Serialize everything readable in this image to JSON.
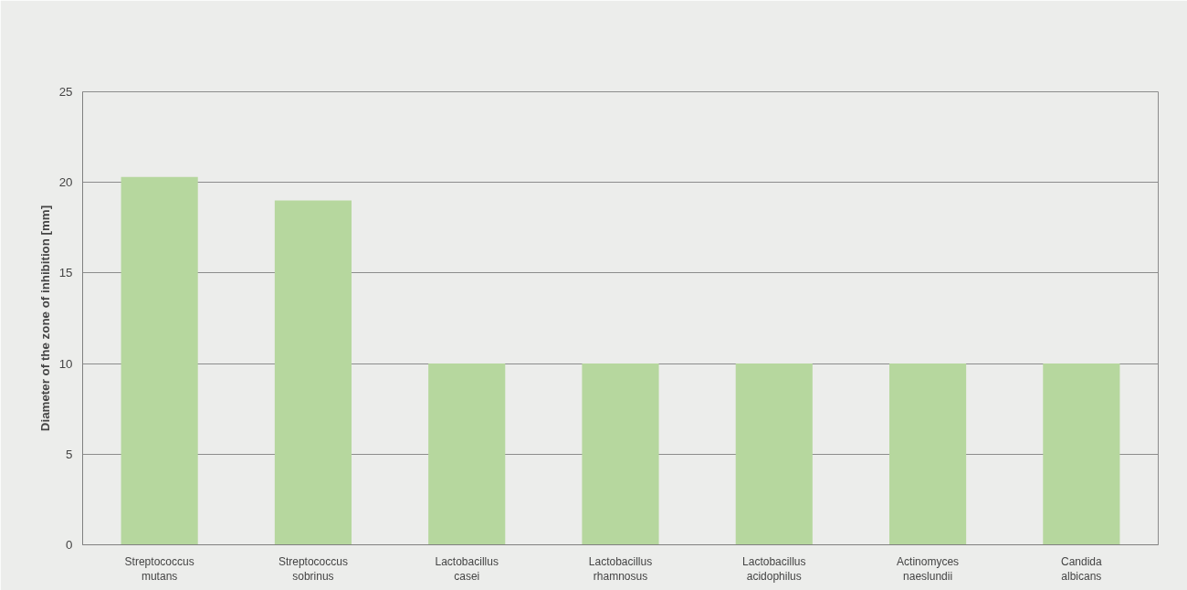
{
  "chart_data": {
    "type": "bar",
    "ylabel": "Diameter of the zone of inhibition [mm]",
    "categories": [
      "Streptococcus mutans",
      "Streptococcus sobrinus",
      "Lactobacillus casei",
      "Lactobacillus rhamnosus",
      "Lactobacillus acidophilus",
      "Actinomyces naeslundii",
      "Candida albicans"
    ],
    "values": [
      20.3,
      19.0,
      10,
      10,
      10,
      10,
      10
    ],
    "color": "#b6d79e",
    "ylim": [
      0,
      25
    ],
    "yticks": [
      0,
      5,
      10,
      15,
      20,
      25
    ],
    "grid": "y"
  }
}
